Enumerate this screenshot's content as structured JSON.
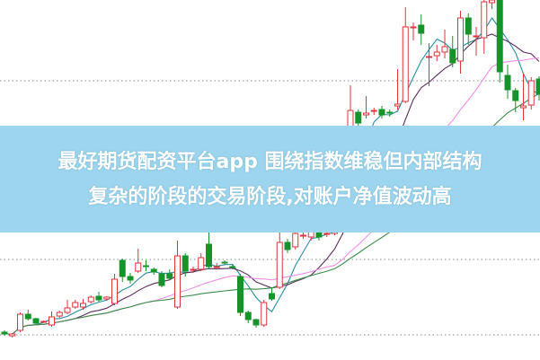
{
  "banner": {
    "line1": "最好期货配资平台app 围绕指数维稳但内部结构",
    "line2": "复杂的阶段的交易阶段,对账户净值波动高",
    "background": "#9dd5ee"
  },
  "chart_data": {
    "type": "candlestick",
    "title": "",
    "grid": "horizontal dotted",
    "colors": {
      "up": "#d9363e",
      "down": "#17932b",
      "ma": [
        "#2a8ea0",
        "#5a2c5c",
        "#ee90e8",
        "#3c8c4a"
      ]
    },
    "moving_average_periods": [
      5,
      10,
      20,
      30
    ],
    "gridlines": [
      310,
      212,
      111,
      27
    ],
    "candles_ohlc": [
      [
        30,
        32,
        26,
        28
      ],
      [
        26,
        29,
        24,
        28
      ],
      [
        32,
        52,
        30,
        50
      ],
      [
        50,
        55,
        43,
        45
      ],
      [
        45,
        46,
        38,
        40
      ],
      [
        42,
        43,
        41,
        42
      ],
      [
        38,
        53,
        36,
        47
      ],
      [
        48,
        54,
        46,
        52
      ],
      [
        52,
        66,
        50,
        57
      ],
      [
        58,
        66,
        56,
        63
      ],
      [
        58,
        67,
        55,
        62
      ],
      [
        64,
        71,
        62,
        69
      ],
      [
        70,
        75,
        64,
        66
      ],
      [
        67,
        70,
        65,
        69
      ],
      [
        62,
        95,
        60,
        89
      ],
      [
        110,
        112,
        86,
        92
      ],
      [
        92,
        96,
        84,
        88
      ],
      [
        98,
        123,
        96,
        107
      ],
      [
        104,
        110,
        98,
        103
      ],
      [
        100,
        102,
        94,
        97
      ],
      [
        95,
        98,
        80,
        82
      ],
      [
        95,
        100,
        88,
        90
      ],
      [
        58,
        132,
        56,
        115
      ],
      [
        115,
        118,
        92,
        98
      ],
      [
        100,
        103,
        96,
        100
      ],
      [
        100,
        118,
        98,
        113
      ],
      [
        128,
        142,
        100,
        103
      ],
      [
        103,
        107,
        100,
        103
      ],
      [
        108,
        110,
        105,
        107
      ],
      [
        103,
        105,
        100,
        102
      ],
      [
        92,
        95,
        48,
        52
      ],
      [
        52,
        54,
        40,
        44
      ],
      [
        44,
        45,
        35,
        38
      ],
      [
        38,
        66,
        36,
        63
      ],
      [
        73,
        80,
        65,
        67
      ],
      [
        80,
        150,
        78,
        130
      ],
      [
        130,
        134,
        118,
        122
      ],
      [
        125,
        145,
        122,
        140
      ],
      [
        138,
        142,
        134,
        138
      ],
      [
        136,
        146,
        132,
        142
      ],
      [
        142,
        145,
        132,
        136
      ],
      [
        140,
        144,
        136,
        140
      ],
      [
        140,
        156,
        138,
        150
      ],
      [
        175,
        250,
        170,
        230
      ],
      [
        250,
        305,
        245,
        277
      ],
      [
        275,
        278,
        258,
        263
      ],
      [
        272,
        293,
        268,
        274
      ],
      [
        276,
        280,
        272,
        277
      ],
      [
        278,
        282,
        268,
        272
      ],
      [
        275,
        278,
        270,
        274
      ],
      [
        282,
        323,
        278,
        284
      ],
      [
        287,
        392,
        285,
        370
      ],
      [
        370,
        375,
        355,
        370
      ],
      [
        372,
        384,
        350,
        363
      ],
      [
        337,
        352,
        304,
        337
      ],
      [
        338,
        350,
        332,
        342
      ],
      [
        342,
        367,
        335,
        348
      ],
      [
        345,
        360,
        325,
        330
      ],
      [
        332,
        388,
        318,
        380
      ],
      [
        380,
        385,
        350,
        362
      ],
      [
        360,
        370,
        338,
        360
      ],
      [
        358,
        410,
        340,
        398
      ],
      [
        397,
        410,
        390,
        400
      ],
      [
        410,
        412,
        308,
        320
      ],
      [
        316,
        328,
        290,
        300
      ],
      [
        299,
        302,
        275,
        288
      ],
      [
        280,
        318,
        266,
        282
      ],
      [
        283,
        314,
        278,
        310
      ],
      [
        312,
        315,
        288,
        295
      ]
    ]
  }
}
